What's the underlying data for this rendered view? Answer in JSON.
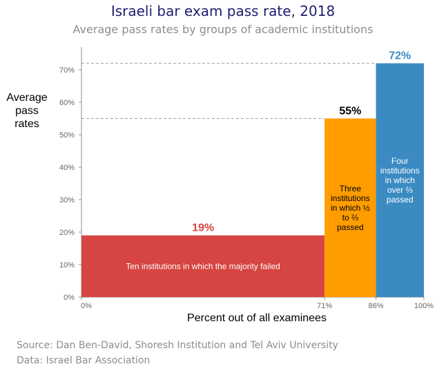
{
  "title": "Israeli bar exam pass rate, 2018",
  "subtitle": "Average pass rates by groups of academic institutions",
  "source": {
    "line1": "Source: Dan Ben-David, Shoresh Institution and Tel Aviv University",
    "line2": "Data: Israel Bar Association"
  },
  "chart_data": {
    "type": "bar",
    "title": "Israeli bar exam pass rate, 2018",
    "subtitle": "Average pass rates by groups of academic institutions",
    "xlabel": "Percent out of all examinees",
    "ylabel": "Average pass rates",
    "xlim": [
      0,
      100
    ],
    "ylim": [
      0,
      75
    ],
    "y_ticks": [
      "0%",
      "10%",
      "20%",
      "30%",
      "40%",
      "50%",
      "60%",
      "70%"
    ],
    "x_ticks": [
      "0%",
      "71%",
      "86%",
      "100%"
    ],
    "grid": false,
    "bars": [
      {
        "x_start": 0,
        "x_end": 71,
        "value": 19,
        "value_label": "19%",
        "label_lines": [
          "Ten institutions in which the majority failed"
        ],
        "color": "#d64541"
      },
      {
        "x_start": 71,
        "x_end": 86,
        "value": 55,
        "value_label": "55%",
        "label_lines": [
          "Three",
          "institutions",
          "in which ½",
          "to ⅔",
          "passed"
        ],
        "color": "#ff9d00"
      },
      {
        "x_start": 86,
        "x_end": 100,
        "value": 72,
        "value_label": "72%",
        "label_lines": [
          "Four",
          "institutions",
          "in which",
          "over ⅔",
          "passed"
        ],
        "color": "#3b8bc2"
      }
    ],
    "value_label_colors": [
      "#d64541",
      "#000000",
      "#3b8bc2"
    ]
  }
}
